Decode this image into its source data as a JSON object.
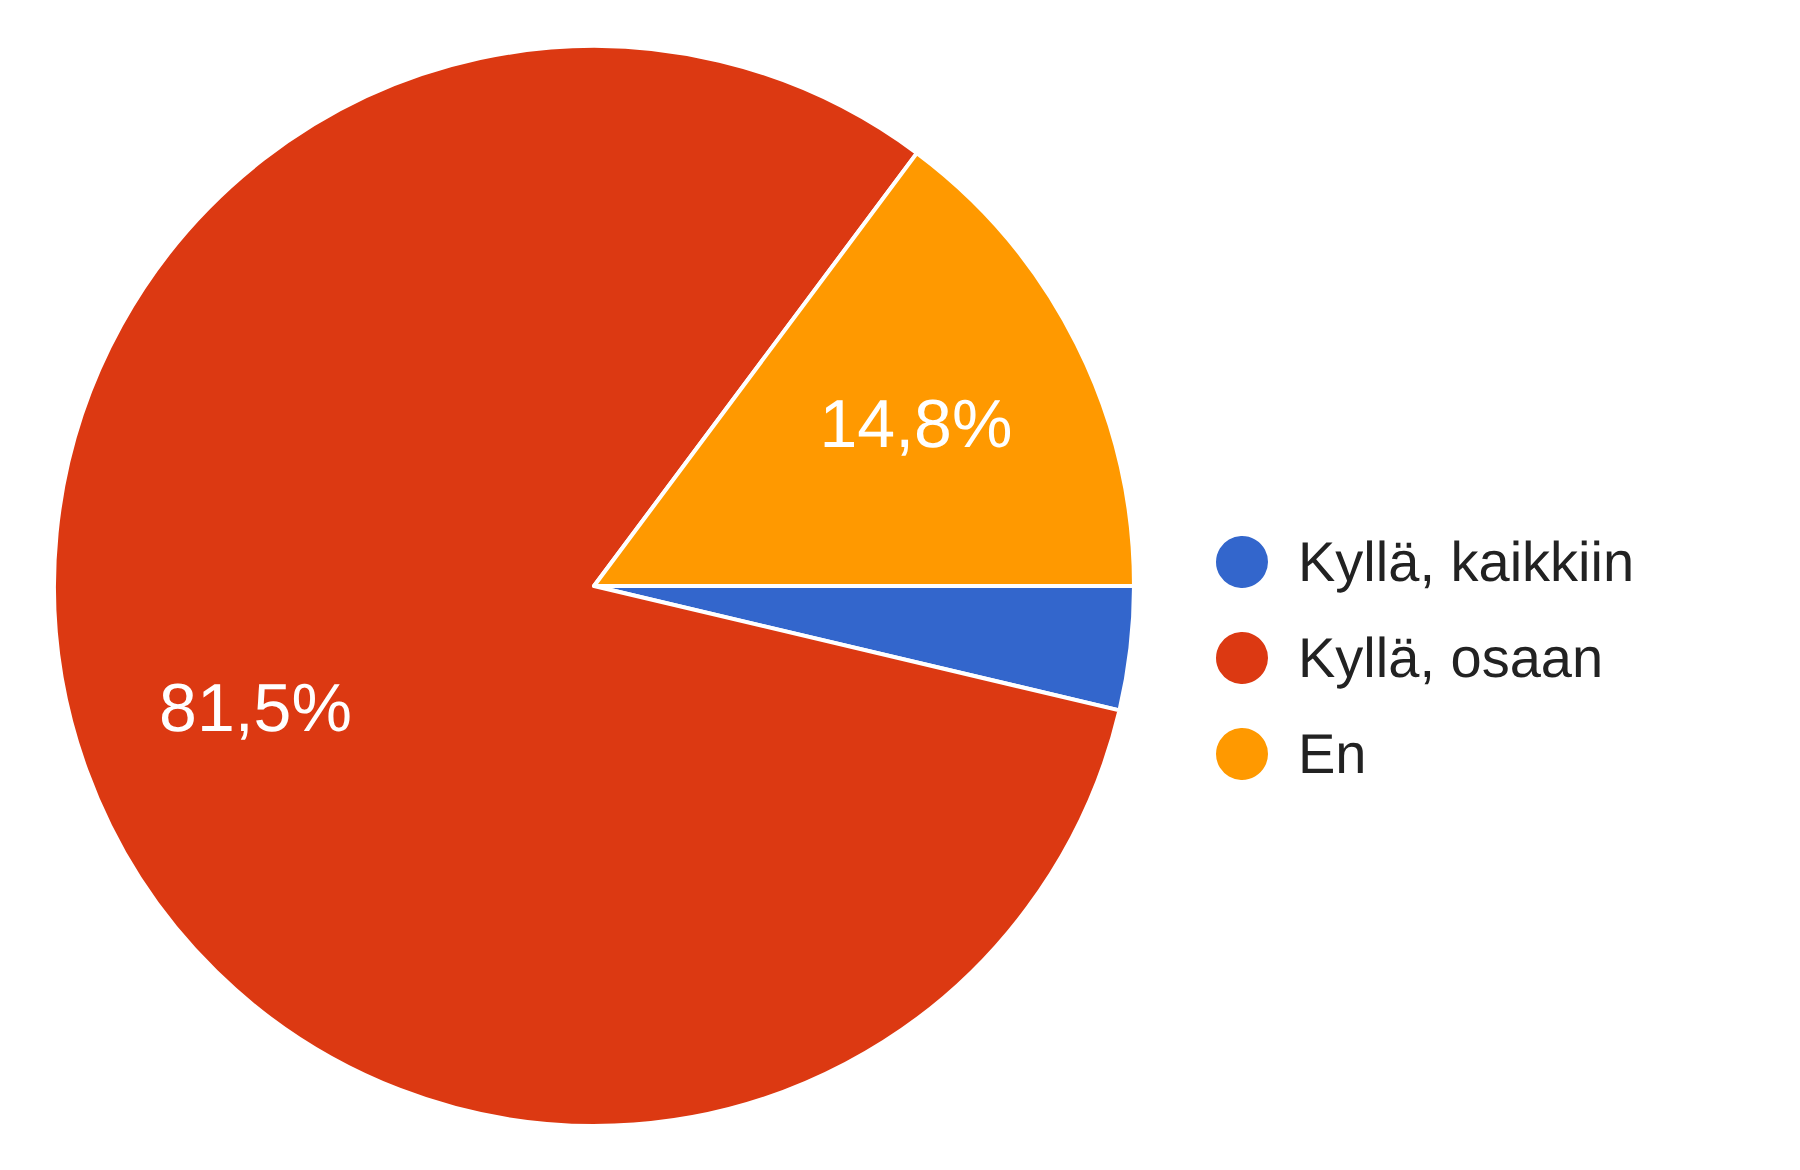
{
  "chart_data": {
    "type": "pie",
    "categories": [
      "Kyllä, kaikkiin",
      "Kyllä, osaan",
      "En"
    ],
    "values": [
      3.7,
      81.5,
      14.8
    ],
    "colors": [
      "#3366cc",
      "#dc3912",
      "#ff9900"
    ],
    "value_labels": [
      null,
      "81,5%",
      "14,8%"
    ],
    "legend": "right"
  }
}
